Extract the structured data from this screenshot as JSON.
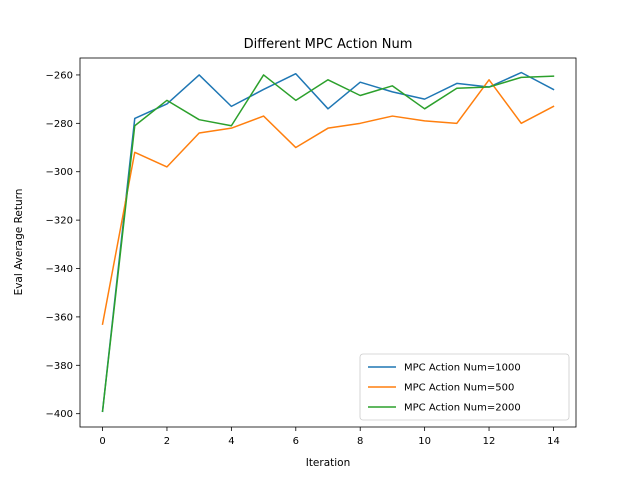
{
  "chart_data": {
    "type": "line",
    "title": "Different MPC Action Num",
    "xlabel": "Iteration",
    "ylabel": "Eval Average Return",
    "x": [
      0,
      1,
      2,
      3,
      4,
      5,
      6,
      7,
      8,
      9,
      10,
      11,
      12,
      13,
      14
    ],
    "xlim": [
      -0.7,
      14.7
    ],
    "ylim": [
      -405.5,
      -253
    ],
    "xticks": [
      0,
      2,
      4,
      6,
      8,
      10,
      12,
      14
    ],
    "yticks": [
      -400,
      -380,
      -360,
      -340,
      -320,
      -300,
      -280,
      -260
    ],
    "grid": false,
    "legend_position": "lower-right",
    "series": [
      {
        "name": "MPC Action Num=1000",
        "color": "#1f77b4",
        "values": [
          -399,
          -278,
          -272,
          -260,
          -273,
          -266,
          -259.5,
          -274,
          -263,
          -267,
          -270,
          -263.5,
          -265,
          -259,
          -266
        ]
      },
      {
        "name": "MPC Action Num=500",
        "color": "#ff7f0e",
        "values": [
          -363,
          -292,
          -298,
          -284,
          -282,
          -277,
          -290,
          -282,
          -280,
          -277,
          -279,
          -280,
          -262,
          -280,
          -273
        ]
      },
      {
        "name": "MPC Action Num=2000",
        "color": "#2ca02c",
        "values": [
          -399,
          -281,
          -270.5,
          -278.5,
          -281,
          -260,
          -270.5,
          -262,
          -268.5,
          -264.5,
          -274,
          -265.5,
          -265,
          -261,
          -260.5
        ]
      }
    ]
  }
}
